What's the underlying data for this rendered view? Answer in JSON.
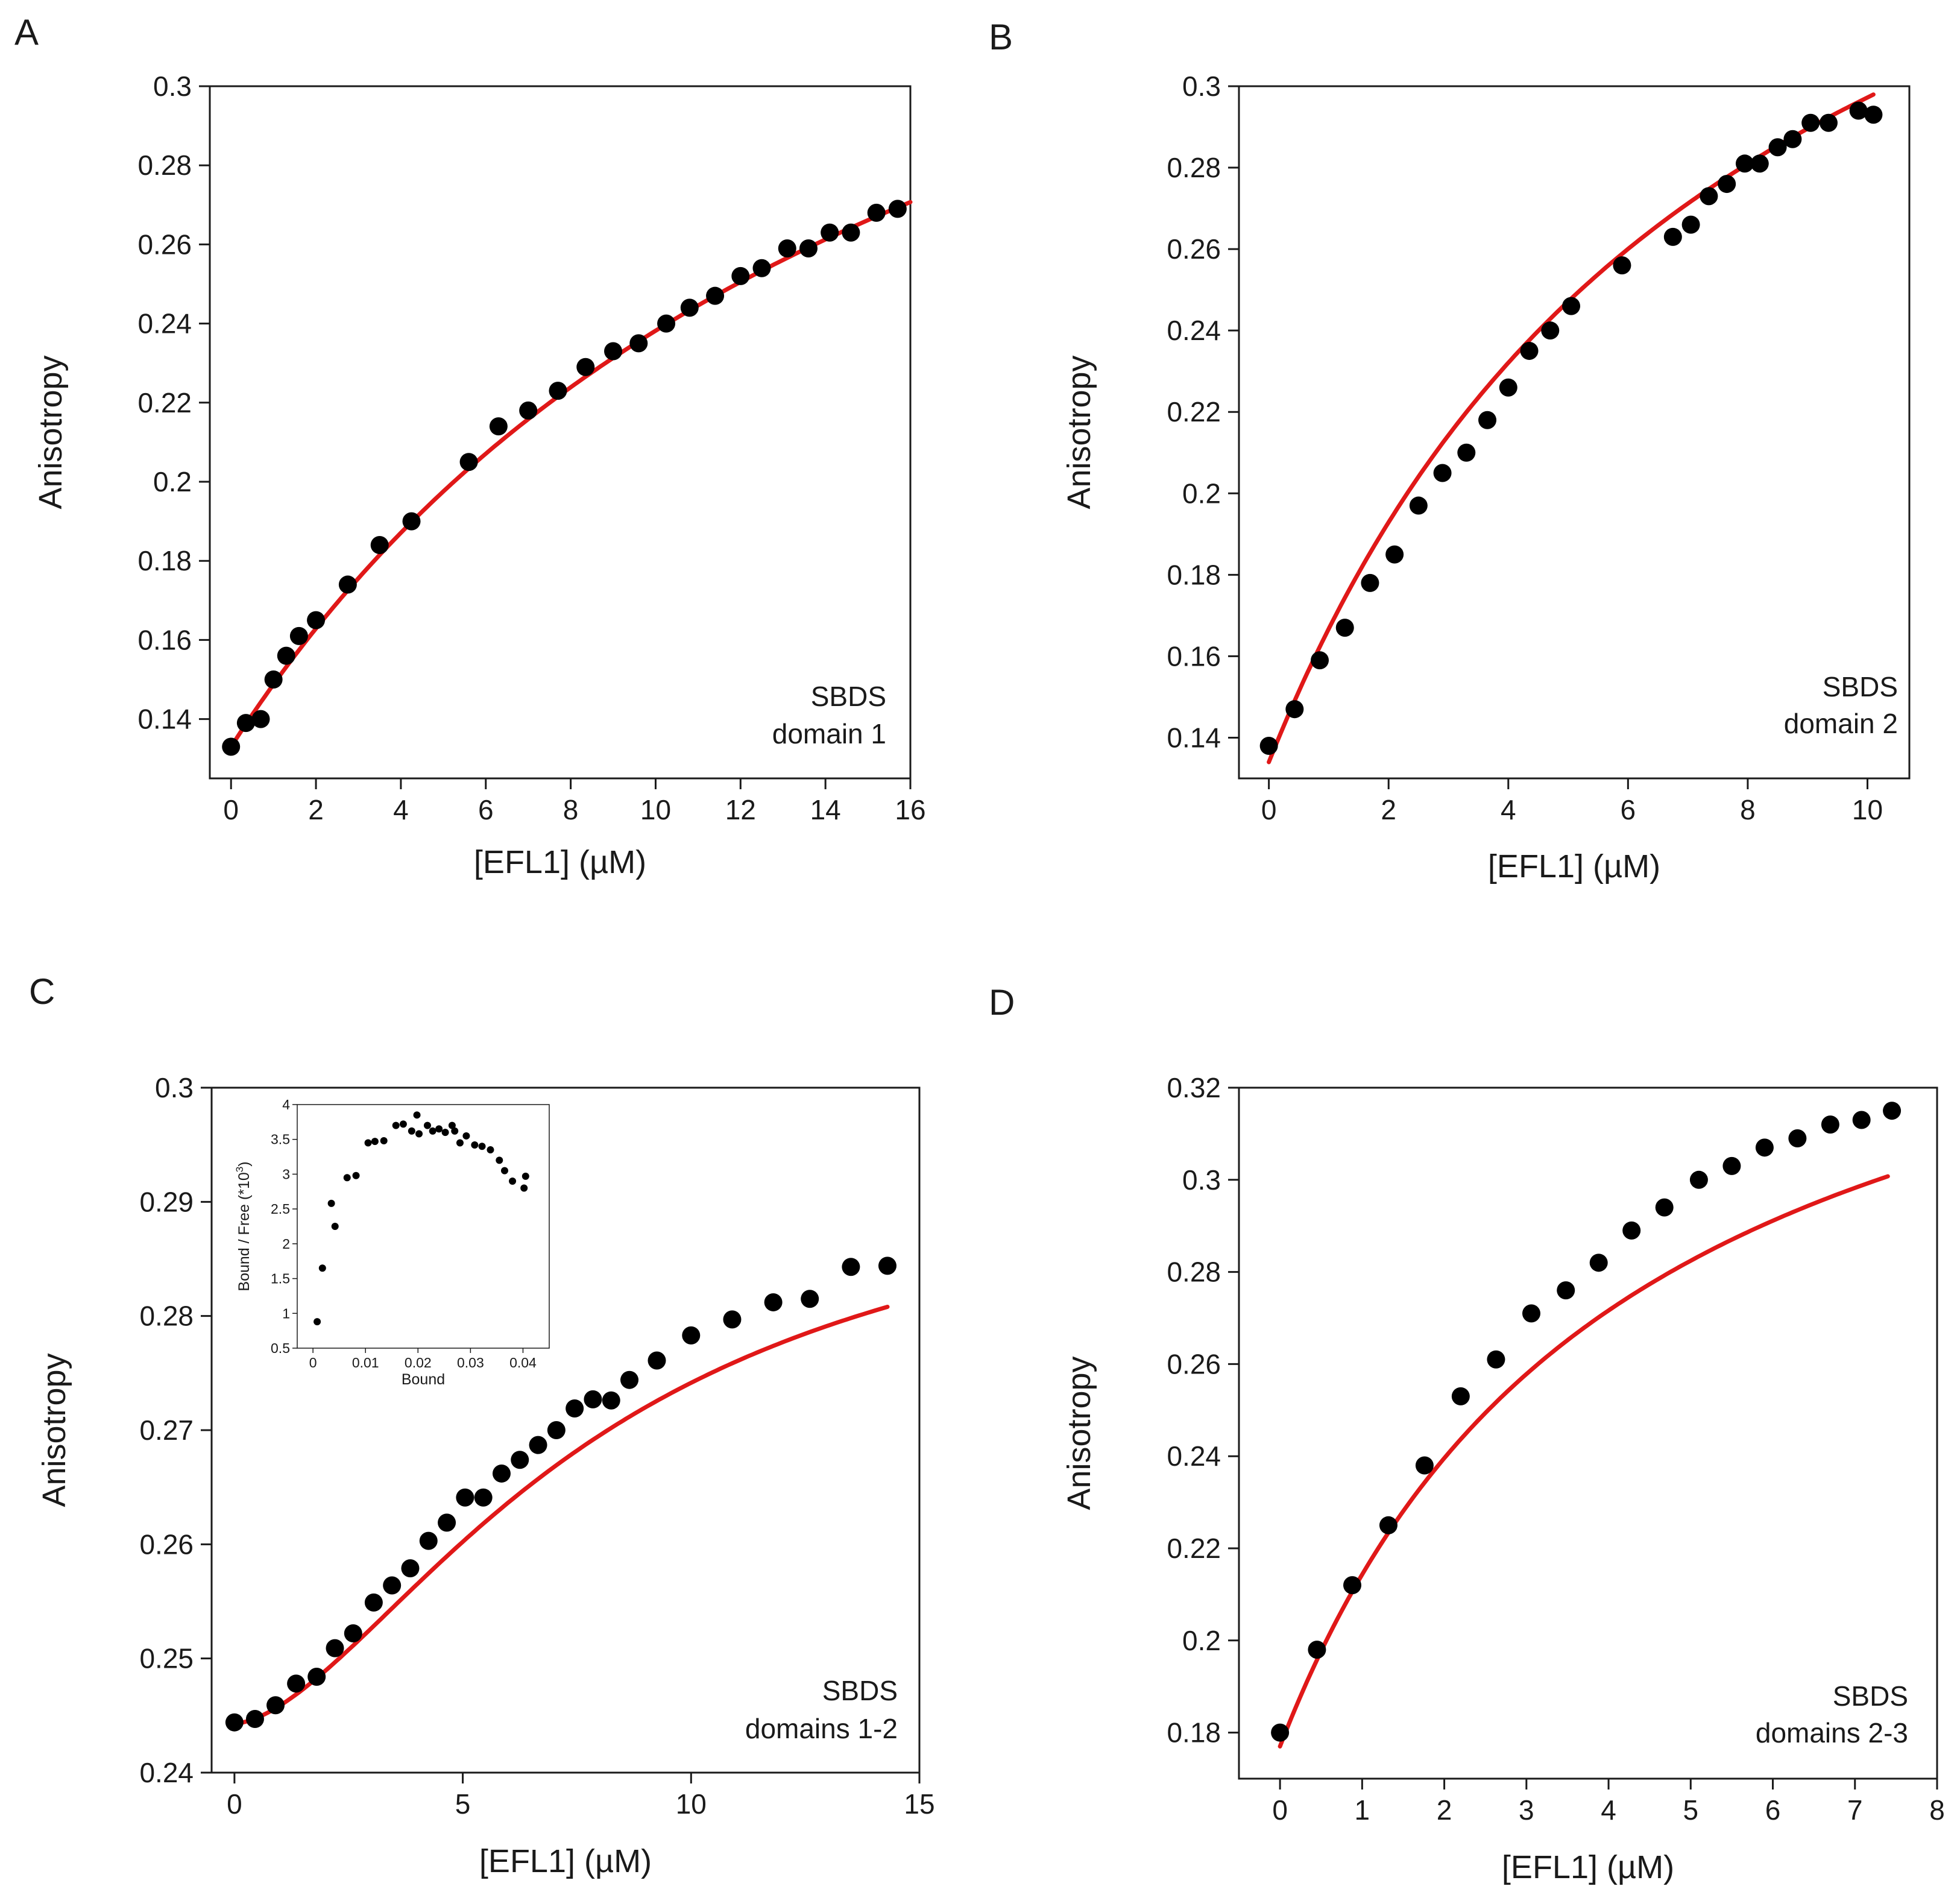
{
  "figure": {
    "description_visible": false
  },
  "colors": {
    "fit_line": "#e01818",
    "points": "#000000",
    "axes": "#1a1a1a",
    "background": "#ffffff"
  },
  "chart_data": [
    {
      "id": "A",
      "type": "scatter",
      "panel_label": "A",
      "xlabel": "[EFL1] (µM)",
      "ylabel": "Anisotropy",
      "annotation": [
        "SBDS",
        "domain 1"
      ],
      "xlim": [
        -0.5,
        16
      ],
      "ylim": [
        0.125,
        0.3
      ],
      "xticks": [
        0,
        2,
        4,
        6,
        8,
        10,
        12,
        14,
        16
      ],
      "xtick_labels": [
        "0",
        "2",
        "4",
        "6",
        "8",
        "10",
        "12",
        "14",
        "16"
      ],
      "yticks": [
        0.14,
        0.16,
        0.18,
        0.2,
        0.22,
        0.24,
        0.26,
        0.28,
        0.3
      ],
      "ytick_labels": [
        "0.14",
        "0.16",
        "0.18",
        "0.2",
        "0.22",
        "0.24",
        "0.26",
        "0.28",
        "0.3"
      ],
      "fit": {
        "model": "saturation",
        "a0": 0.133,
        "amp": 0.284,
        "kd": 17.0,
        "xrange": [
          0,
          16
        ]
      },
      "points": {
        "x": [
          0,
          0.35,
          0.7,
          1.0,
          1.3,
          1.6,
          2.0,
          2.75,
          3.5,
          4.25,
          5.6,
          6.3,
          7.0,
          7.7,
          8.35,
          9.0,
          9.6,
          10.25,
          10.8,
          11.4,
          12.0,
          12.5,
          13.1,
          13.6,
          14.1,
          14.6,
          15.2,
          15.7
        ],
        "y": [
          0.133,
          0.139,
          0.14,
          0.15,
          0.156,
          0.161,
          0.165,
          0.174,
          0.184,
          0.19,
          0.205,
          0.214,
          0.218,
          0.223,
          0.229,
          0.233,
          0.235,
          0.24,
          0.244,
          0.247,
          0.252,
          0.254,
          0.259,
          0.259,
          0.263,
          0.263,
          0.268,
          0.269
        ]
      }
    },
    {
      "id": "B",
      "type": "scatter",
      "panel_label": "B",
      "xlabel": "[EFL1] (µM)",
      "ylabel": "Anisotropy",
      "annotation": [
        "SBDS",
        "domain 2"
      ],
      "xlim": [
        -0.5,
        10.7
      ],
      "ylim": [
        0.13,
        0.3
      ],
      "xticks": [
        0,
        2,
        4,
        6,
        8,
        10
      ],
      "xtick_labels": [
        "0",
        "2",
        "4",
        "6",
        "8",
        "10"
      ],
      "yticks": [
        0.14,
        0.16,
        0.18,
        0.2,
        0.22,
        0.24,
        0.26,
        0.28,
        0.3
      ],
      "ytick_labels": [
        "0.14",
        "0.16",
        "0.18",
        "0.2",
        "0.22",
        "0.24",
        "0.26",
        "0.28",
        "0.3"
      ],
      "fit": {
        "model": "saturation",
        "a0": 0.134,
        "amp": 0.293,
        "kd": 7.95,
        "xrange": [
          0,
          10.1
        ]
      },
      "points": {
        "x": [
          0,
          0.43,
          0.85,
          1.27,
          1.69,
          2.1,
          2.5,
          2.9,
          3.3,
          3.65,
          4.0,
          4.35,
          4.7,
          5.05,
          5.9,
          6.75,
          7.05,
          7.35,
          7.65,
          7.95,
          8.2,
          8.5,
          8.75,
          9.05,
          9.35,
          9.85,
          10.1
        ],
        "y": [
          0.138,
          0.147,
          0.159,
          0.167,
          0.178,
          0.185,
          0.197,
          0.205,
          0.21,
          0.218,
          0.226,
          0.235,
          0.24,
          0.246,
          0.256,
          0.263,
          0.266,
          0.273,
          0.276,
          0.281,
          0.281,
          0.285,
          0.287,
          0.291,
          0.291,
          0.294,
          0.293
        ]
      }
    },
    {
      "id": "C",
      "type": "scatter",
      "panel_label": "C",
      "xlabel": "[EFL1] (µM)",
      "ylabel": "Anisotropy",
      "annotation": [
        "SBDS",
        "domains 1-2"
      ],
      "xlim": [
        -0.5,
        15
      ],
      "ylim": [
        0.24,
        0.3
      ],
      "xticks": [
        0,
        5,
        10,
        15
      ],
      "xtick_labels": [
        "0",
        "5",
        "10",
        "15"
      ],
      "yticks": [
        0.24,
        0.25,
        0.26,
        0.27,
        0.28,
        0.29,
        0.3
      ],
      "ytick_labels": [
        "0.24",
        "0.25",
        "0.26",
        "0.27",
        "0.28",
        "0.29",
        "0.3"
      ],
      "fit": {
        "model": "hill",
        "a0": 0.2443,
        "amp": 0.0505,
        "k": 8.0,
        "n": 1.65,
        "xrange": [
          0,
          14.3
        ]
      },
      "points": {
        "x": [
          0,
          0.45,
          0.9,
          1.35,
          1.8,
          2.2,
          2.6,
          3.05,
          3.45,
          3.85,
          4.25,
          4.65,
          5.05,
          5.45,
          5.85,
          6.25,
          6.65,
          7.05,
          7.45,
          7.85,
          8.25,
          8.65,
          9.25,
          10.0,
          10.9,
          11.8,
          12.6,
          13.5,
          14.3
        ],
        "y": [
          0.2444,
          0.2447,
          0.2459,
          0.2478,
          0.2484,
          0.2509,
          0.2522,
          0.2549,
          0.2564,
          0.2579,
          0.2603,
          0.2619,
          0.2641,
          0.2641,
          0.2662,
          0.2674,
          0.2687,
          0.27,
          0.2719,
          0.2727,
          0.2726,
          0.2744,
          0.2761,
          0.2783,
          0.2797,
          0.2812,
          0.2815,
          0.2843,
          0.2844
        ]
      },
      "inset": {
        "type": "scatter",
        "xlabel": "Bound",
        "ylabel": "Bound / Free (*10",
        "ylabel_sup": "3",
        "ylabel_close": ")",
        "xlim": [
          -0.003,
          0.045
        ],
        "ylim": [
          0.5,
          4.0
        ],
        "xticks": [
          0,
          0.01,
          0.02,
          0.03,
          0.04
        ],
        "xtick_labels": [
          "0",
          "0.01",
          "0.02",
          "0.03",
          "0.04"
        ],
        "yticks": [
          0.5,
          1,
          1.5,
          2,
          2.5,
          3,
          3.5,
          4
        ],
        "ytick_labels": [
          "0.5",
          "1",
          "1.5",
          "2",
          "2.5",
          "3",
          "3.5",
          "4"
        ],
        "points": {
          "x": [
            0.0008,
            0.0018,
            0.0035,
            0.0042,
            0.0065,
            0.0082,
            0.0105,
            0.0118,
            0.0135,
            0.0158,
            0.0172,
            0.0188,
            0.0198,
            0.0202,
            0.0218,
            0.0228,
            0.024,
            0.0252,
            0.0265,
            0.027,
            0.028,
            0.0292,
            0.0308,
            0.0322,
            0.0338,
            0.0355,
            0.0365,
            0.038,
            0.0402,
            0.0405
          ],
          "y": [
            0.88,
            1.65,
            2.58,
            2.25,
            2.95,
            2.98,
            3.45,
            3.47,
            3.48,
            3.7,
            3.72,
            3.62,
            3.85,
            3.58,
            3.7,
            3.62,
            3.65,
            3.6,
            3.7,
            3.62,
            3.45,
            3.55,
            3.42,
            3.4,
            3.35,
            3.2,
            3.05,
            2.9,
            2.8,
            2.97
          ]
        }
      }
    },
    {
      "id": "D",
      "type": "scatter",
      "panel_label": "D",
      "xlabel": "[EFL1] (µM)",
      "ylabel": "Anisotropy",
      "annotation": [
        "SBDS",
        "domains 2-3"
      ],
      "xlim": [
        -0.5,
        8
      ],
      "ylim": [
        0.17,
        0.32
      ],
      "xticks": [
        0,
        1,
        2,
        3,
        4,
        5,
        6,
        7,
        8
      ],
      "xtick_labels": [
        "0",
        "1",
        "2",
        "3",
        "4",
        "5",
        "6",
        "7",
        "8"
      ],
      "yticks": [
        0.18,
        0.2,
        0.22,
        0.24,
        0.26,
        0.28,
        0.3,
        0.32
      ],
      "ytick_labels": [
        "0.18",
        "0.2",
        "0.22",
        "0.24",
        "0.26",
        "0.28",
        "0.3",
        "0.32"
      ],
      "fit": {
        "model": "saturation",
        "a0": 0.177,
        "amp": 0.194,
        "kd": 4.2,
        "xrange": [
          0,
          7.4
        ]
      },
      "points": {
        "x": [
          0,
          0.45,
          0.88,
          1.32,
          1.76,
          2.2,
          2.63,
          3.06,
          3.48,
          3.88,
          4.28,
          4.68,
          5.1,
          5.5,
          5.9,
          6.3,
          6.7,
          7.08,
          7.45
        ],
        "y": [
          0.18,
          0.198,
          0.212,
          0.225,
          0.238,
          0.253,
          0.261,
          0.271,
          0.276,
          0.282,
          0.289,
          0.294,
          0.3,
          0.303,
          0.307,
          0.309,
          0.312,
          0.313,
          0.315
        ]
      }
    }
  ]
}
